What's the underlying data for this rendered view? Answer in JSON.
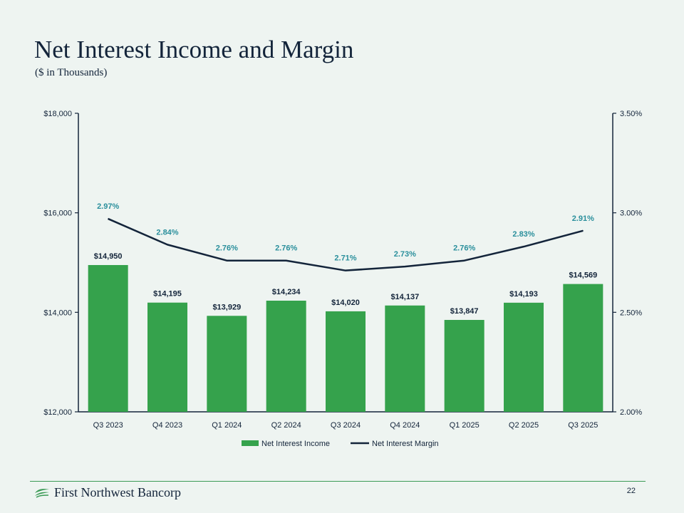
{
  "slide": {
    "title": "Net Interest Income and Margin",
    "subtitle": "($ in Thousands)",
    "company": "First Northwest Bancorp",
    "page_number": "22"
  },
  "colors": {
    "bar": "#35a24c",
    "line": "#13243a",
    "pct_label": "#2a8f9c",
    "text": "#13243a",
    "rule": "#3a9a55"
  },
  "chart_data": {
    "type": "bar",
    "categories": [
      "Q3 2023",
      "Q4 2023",
      "Q1 2024",
      "Q2 2024",
      "Q3 2024",
      "Q4 2024",
      "Q1 2025",
      "Q2 2025",
      "Q3 2025"
    ],
    "series": [
      {
        "name": "Net Interest Income",
        "type": "bar",
        "axis": "left",
        "values": [
          14950,
          14195,
          13929,
          14234,
          14020,
          14137,
          13847,
          14193,
          14569
        ],
        "labels": [
          "$14,950",
          "$14,195",
          "$13,929",
          "$14,234",
          "$14,020",
          "$14,137",
          "$13,847",
          "$14,193",
          "$14,569"
        ]
      },
      {
        "name": "Net Interest Margin",
        "type": "line",
        "axis": "right",
        "values": [
          2.97,
          2.84,
          2.76,
          2.76,
          2.71,
          2.73,
          2.76,
          2.83,
          2.91
        ],
        "labels": [
          "2.97%",
          "2.84%",
          "2.76%",
          "2.76%",
          "2.71%",
          "2.73%",
          "2.76%",
          "2.83%",
          "2.91%"
        ]
      }
    ],
    "y_left": {
      "min": 12000,
      "max": 18000,
      "ticks": [
        12000,
        14000,
        16000,
        18000
      ],
      "tick_labels": [
        "$12,000",
        "$14,000",
        "$16,000",
        "$18,000"
      ]
    },
    "y_right": {
      "min": 2.0,
      "max": 3.5,
      "ticks": [
        2.0,
        2.5,
        3.0,
        3.5
      ],
      "tick_labels": [
        "2.00%",
        "2.50%",
        "3.00%",
        "3.50%"
      ]
    },
    "legend": [
      "Net Interest Income",
      "Net Interest Margin"
    ],
    "legend_position": "bottom",
    "grid": false
  }
}
